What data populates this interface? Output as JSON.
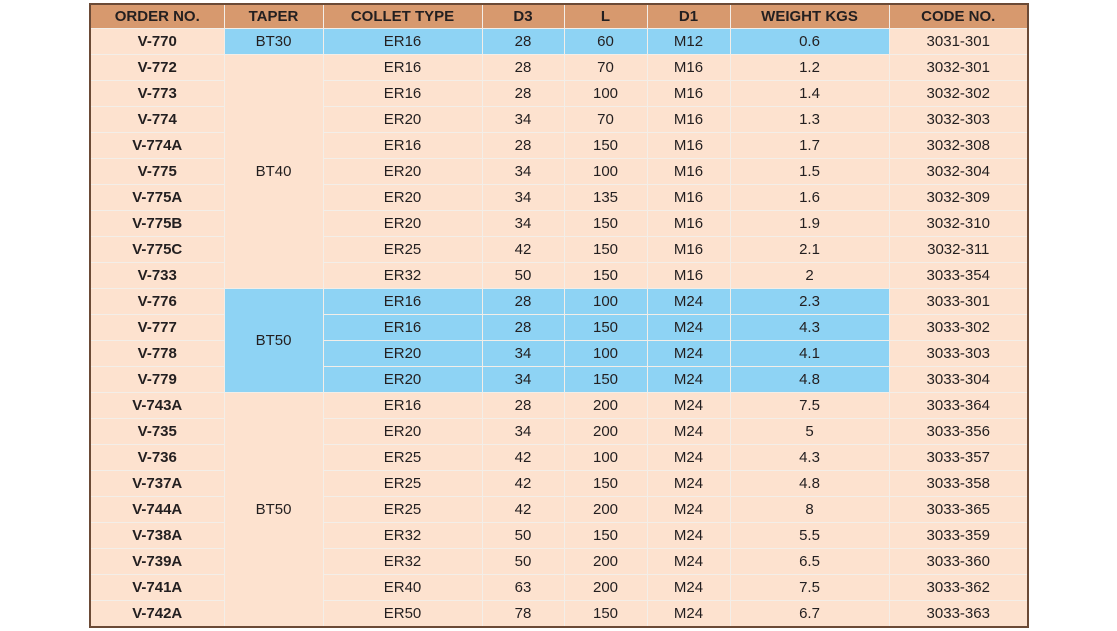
{
  "table": {
    "header": [
      "ORDER NO.",
      "TAPER",
      "COLLET TYPE",
      "D3",
      "L",
      "D1",
      "WEIGHT KGS",
      "CODE NO."
    ],
    "groups": [
      {
        "taper": "BT30",
        "fill": "#8ed3f4",
        "rows": [
          [
            "V-770",
            "ER16",
            28,
            60,
            "M12",
            0.6,
            "3031-301"
          ]
        ]
      },
      {
        "taper": "BT40",
        "fill": "#fde2cf",
        "rows": [
          [
            "V-772",
            "ER16",
            28,
            70,
            "M16",
            1.2,
            "3032-301"
          ],
          [
            "V-773",
            "ER16",
            28,
            100,
            "M16",
            1.4,
            "3032-302"
          ],
          [
            "V-774",
            "ER20",
            34,
            70,
            "M16",
            1.3,
            "3032-303"
          ],
          [
            "V-774A",
            "ER16",
            28,
            150,
            "M16",
            1.7,
            "3032-308"
          ],
          [
            "V-775",
            "ER20",
            34,
            100,
            "M16",
            1.5,
            "3032-304"
          ],
          [
            "V-775A",
            "ER20",
            34,
            135,
            "M16",
            1.6,
            "3032-309"
          ],
          [
            "V-775B",
            "ER20",
            34,
            150,
            "M16",
            1.9,
            "3032-310"
          ],
          [
            "V-775C",
            "ER25",
            42,
            150,
            "M16",
            2.1,
            "3032-311"
          ],
          [
            "V-733",
            "ER32",
            50,
            150,
            "M16",
            2,
            "3033-354"
          ]
        ]
      },
      {
        "taper": "BT50",
        "fill": "#8ed3f4",
        "rows": [
          [
            "V-776",
            "ER16",
            28,
            100,
            "M24",
            2.3,
            "3033-301"
          ],
          [
            "V-777",
            "ER16",
            28,
            150,
            "M24",
            4.3,
            "3033-302"
          ],
          [
            "V-778",
            "ER20",
            34,
            100,
            "M24",
            4.1,
            "3033-303"
          ],
          [
            "V-779",
            "ER20",
            34,
            150,
            "M24",
            4.8,
            "3033-304"
          ]
        ]
      },
      {
        "taper": "BT50",
        "fill": "#fde2cf",
        "rows": [
          [
            "V-743A",
            "ER16",
            28,
            200,
            "M24",
            7.5,
            "3033-364"
          ],
          [
            "V-735",
            "ER20",
            34,
            200,
            "M24",
            5,
            "3033-356"
          ],
          [
            "V-736",
            "ER25",
            42,
            100,
            "M24",
            4.3,
            "3033-357"
          ],
          [
            "V-737A",
            "ER25",
            42,
            150,
            "M24",
            4.8,
            "3033-358"
          ],
          [
            "V-744A",
            "ER25",
            42,
            200,
            "M24",
            8,
            "3033-365"
          ],
          [
            "V-738A",
            "ER32",
            50,
            150,
            "M24",
            5.5,
            "3033-359"
          ],
          [
            "V-739A",
            "ER32",
            50,
            200,
            "M24",
            6.5,
            "3033-360"
          ],
          [
            "V-741A",
            "ER40",
            63,
            200,
            "M24",
            7.5,
            "3033-362"
          ],
          [
            "V-742A",
            "ER50",
            78,
            150,
            "M24",
            6.7,
            "3033-363"
          ]
        ]
      }
    ]
  }
}
